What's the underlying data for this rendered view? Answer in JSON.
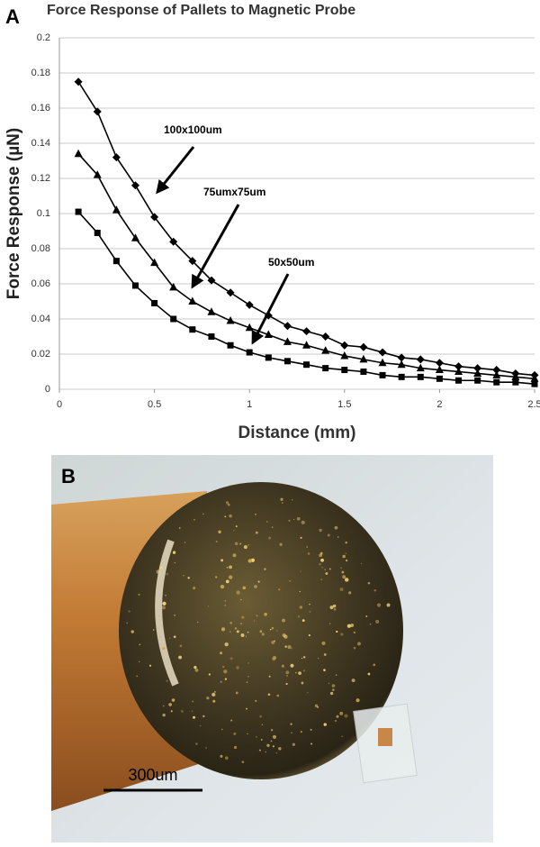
{
  "chart_data": {
    "type": "line",
    "panel_label": "A",
    "title": "Force Response of Pallets to Magnetic Probe",
    "xlabel": "Distance (mm)",
    "ylabel": "Force Response (µN)",
    "x": [
      0.1,
      0.2,
      0.3,
      0.4,
      0.5,
      0.6,
      0.7,
      0.8,
      0.9,
      1.0,
      1.1,
      1.2,
      1.3,
      1.4,
      1.5,
      1.6,
      1.7,
      1.8,
      1.9,
      2.0,
      2.1,
      2.2,
      2.3,
      2.4,
      2.5
    ],
    "series": [
      {
        "name": "100x100um",
        "color": "#000000",
        "marker": "diamond",
        "values": [
          0.175,
          0.158,
          0.132,
          0.116,
          0.098,
          0.084,
          0.073,
          0.062,
          0.055,
          0.048,
          0.042,
          0.036,
          0.033,
          0.03,
          0.025,
          0.024,
          0.021,
          0.018,
          0.017,
          0.015,
          0.013,
          0.012,
          0.011,
          0.009,
          0.008
        ]
      },
      {
        "name": "75umx75um",
        "color": "#000000",
        "marker": "triangle",
        "values": [
          0.134,
          0.122,
          0.102,
          0.086,
          0.072,
          0.058,
          0.05,
          0.044,
          0.039,
          0.035,
          0.031,
          0.027,
          0.025,
          0.022,
          0.019,
          0.017,
          0.015,
          0.014,
          0.012,
          0.011,
          0.01,
          0.009,
          0.008,
          0.007,
          0.006
        ]
      },
      {
        "name": "50x50um",
        "color": "#000000",
        "marker": "square",
        "values": [
          0.101,
          0.089,
          0.073,
          0.059,
          0.049,
          0.04,
          0.034,
          0.03,
          0.025,
          0.021,
          0.018,
          0.016,
          0.014,
          0.012,
          0.011,
          0.01,
          0.008,
          0.007,
          0.007,
          0.006,
          0.005,
          0.005,
          0.004,
          0.004,
          0.003
        ]
      }
    ],
    "xlim": [
      0,
      2.5
    ],
    "xticks": [
      0,
      0.5,
      1,
      1.5,
      2,
      2.5
    ],
    "ylim": [
      0,
      0.2
    ],
    "yticks": [
      0,
      0.02,
      0.04,
      0.06,
      0.08,
      0.1,
      0.12,
      0.14,
      0.16,
      0.18,
      0.2
    ],
    "grid": true
  },
  "photo": {
    "panel_label": "B",
    "scale_bar": "300um"
  }
}
